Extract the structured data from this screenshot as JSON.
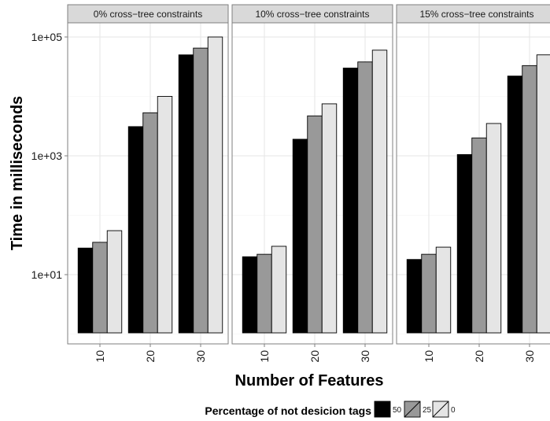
{
  "chart_data": {
    "type": "bar",
    "scale_y": "log10",
    "ylim": [
      3,
      100000
    ],
    "y_ticks": [
      {
        "value": 10,
        "label": "1e+01"
      },
      {
        "value": 1000,
        "label": "1e+03"
      },
      {
        "value": 100000,
        "label": "1e+05"
      }
    ],
    "xlabel": "Number of Features",
    "ylabel": "Time in milliseconds",
    "categories": [
      "10",
      "20",
      "30"
    ],
    "legend": {
      "title": "Percentage of not desicion tags",
      "placement": "bottom",
      "items": [
        {
          "label": "50",
          "color": "#000000"
        },
        {
          "label": "25",
          "color": "#999999"
        },
        {
          "label": "0",
          "color": "#e5e5e5"
        }
      ]
    },
    "grid": true,
    "panels": [
      {
        "title": "0% cross−tree constraints",
        "series": [
          {
            "name": "50",
            "values": [
              28,
              3100,
              50000
            ]
          },
          {
            "name": "25",
            "values": [
              35,
              5300,
              65000
            ]
          },
          {
            "name": "0",
            "values": [
              55,
              10000,
              100000
            ]
          }
        ]
      },
      {
        "title": "10% cross−tree constraints",
        "series": [
          {
            "name": "50",
            "values": [
              20,
              1900,
              30000
            ]
          },
          {
            "name": "25",
            "values": [
              22,
              4700,
              38000
            ]
          },
          {
            "name": "0",
            "values": [
              30,
              7500,
              60000
            ]
          }
        ]
      },
      {
        "title": "15% cross−tree constraints",
        "series": [
          {
            "name": "50",
            "values": [
              18,
              1050,
              22000
            ]
          },
          {
            "name": "25",
            "values": [
              22,
              2000,
              33000
            ]
          },
          {
            "name": "0",
            "values": [
              29,
              3500,
              50000
            ]
          }
        ]
      }
    ]
  }
}
